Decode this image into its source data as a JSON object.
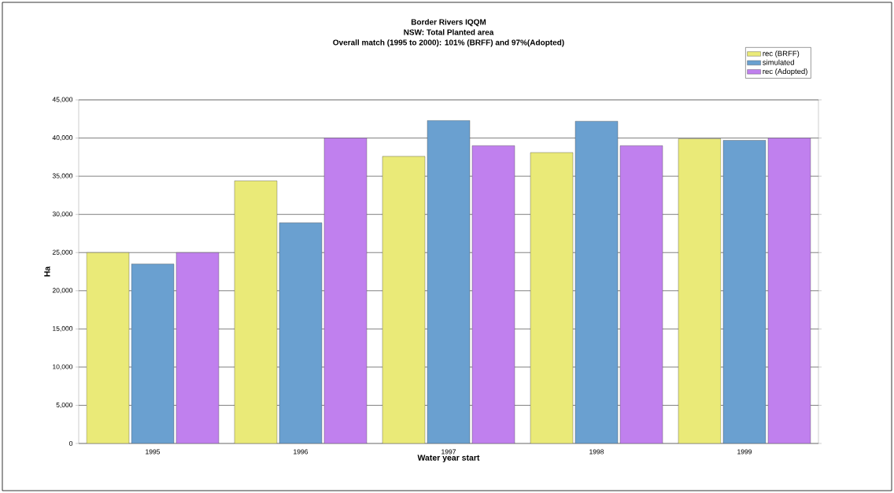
{
  "chart_data": {
    "type": "bar",
    "title": "Border Rivers IQQM\nNSW: Total Planted area\nOverall match (1995 to 2000): 101% (BRFF) and 97%(Adopted)",
    "xlabel": "Water year start",
    "ylabel": "Ha",
    "categories": [
      "1995",
      "1996",
      "1997",
      "1998",
      "1999"
    ],
    "series": [
      {
        "name": "rec (BRFF)",
        "color": "#eaea78",
        "values": [
          25000,
          34400,
          37600,
          38100,
          39900
        ]
      },
      {
        "name": "simulated",
        "color": "#6aa0d0",
        "values": [
          23500,
          28900,
          42300,
          42200,
          39700
        ]
      },
      {
        "name": "rec (Adopted)",
        "color": "#c080ee",
        "values": [
          25000,
          40000,
          39000,
          39000,
          40000
        ]
      }
    ],
    "ylim": [
      0,
      45000
    ],
    "yticks": [
      {
        "value": 0,
        "label": "0"
      },
      {
        "value": 5000,
        "label": "5,000"
      },
      {
        "value": 10000,
        "label": "10,000"
      },
      {
        "value": 15000,
        "label": "15,000"
      },
      {
        "value": 20000,
        "label": "20,000"
      },
      {
        "value": 25000,
        "label": "25,000"
      },
      {
        "value": 30000,
        "label": "30,000"
      },
      {
        "value": 35000,
        "label": "35,000"
      },
      {
        "value": 40000,
        "label": "40,000"
      },
      {
        "value": 45000,
        "label": "45,000"
      }
    ],
    "grid": "y",
    "legend": "top right"
  }
}
